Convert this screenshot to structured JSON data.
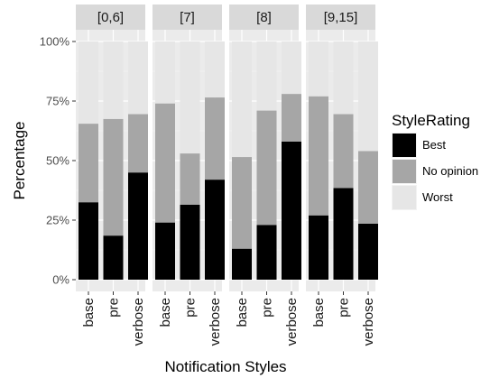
{
  "chart_data": {
    "type": "bar",
    "stacked": true,
    "xlabel": "Notification Styles",
    "ylabel": "Percentage",
    "ylim": [
      0,
      100
    ],
    "yticks": [
      0,
      25,
      50,
      75,
      100
    ],
    "ytick_labels": [
      "0%",
      "25%",
      "50%",
      "75%",
      "100%"
    ],
    "categories": [
      "base",
      "pre",
      "verbose"
    ],
    "legend": {
      "title": "StyleRating",
      "position": "right",
      "entries": [
        {
          "name": "Best",
          "color": "#000000"
        },
        {
          "name": "No opinion",
          "color": "#a6a6a6"
        },
        {
          "name": "Worst",
          "color": "#e6e6e6"
        }
      ]
    },
    "facets": [
      {
        "label": "[0,6]",
        "series": [
          {
            "name": "Best",
            "values": [
              32.5,
              18.5,
              45
            ]
          },
          {
            "name": "No opinion",
            "values": [
              33,
              49,
              24.5
            ]
          },
          {
            "name": "Worst",
            "values": [
              34.5,
              32.5,
              30.5
            ]
          }
        ]
      },
      {
        "label": "[7]",
        "series": [
          {
            "name": "Best",
            "values": [
              24,
              31.5,
              42
            ]
          },
          {
            "name": "No opinion",
            "values": [
              50,
              21.5,
              34.5
            ]
          },
          {
            "name": "Worst",
            "values": [
              26,
              47,
              23.5
            ]
          }
        ]
      },
      {
        "label": "[8]",
        "series": [
          {
            "name": "Best",
            "values": [
              13,
              23,
              58
            ]
          },
          {
            "name": "No opinion",
            "values": [
              38.5,
              48,
              20
            ]
          },
          {
            "name": "Worst",
            "values": [
              48.5,
              29,
              22
            ]
          }
        ]
      },
      {
        "label": "[9,15]",
        "series": [
          {
            "name": "Best",
            "values": [
              27,
              38.5,
              23.5
            ]
          },
          {
            "name": "No opinion",
            "values": [
              50,
              31,
              30.5
            ]
          },
          {
            "name": "Worst",
            "values": [
              23,
              30.5,
              46
            ]
          }
        ]
      }
    ],
    "grid": true,
    "background": "#ebebeb",
    "strip_color": "#d9d9d9"
  }
}
